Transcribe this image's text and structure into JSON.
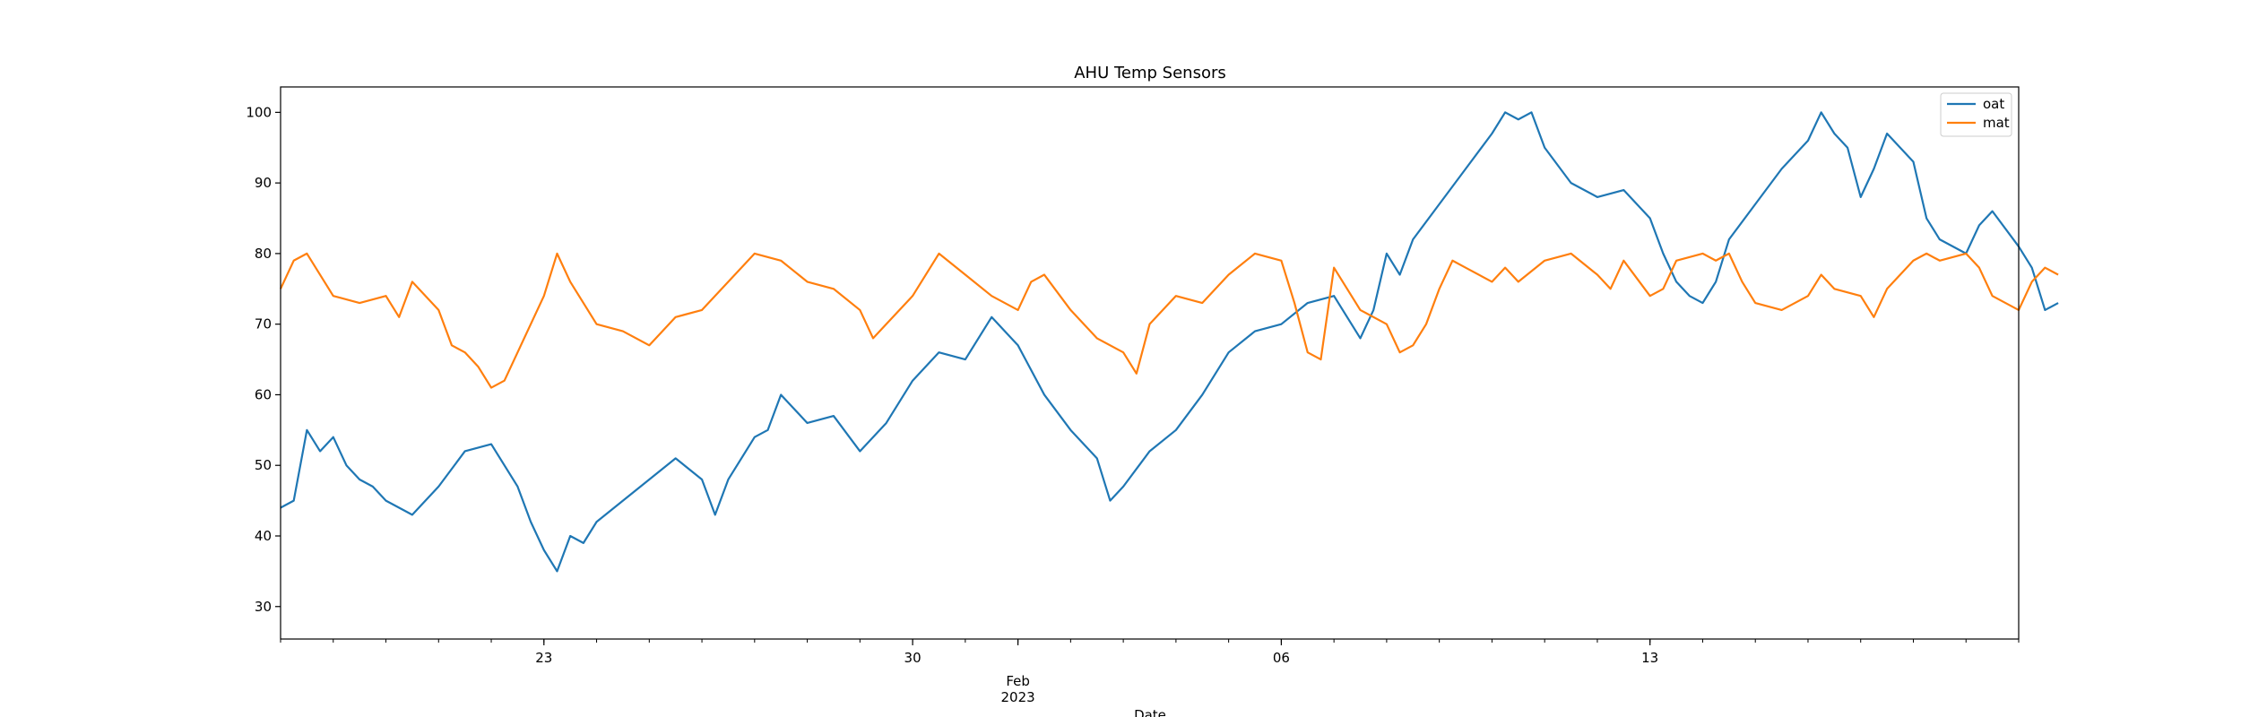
{
  "chart_data": {
    "type": "line",
    "title": "AHU Temp Sensors",
    "xlabel": "Date",
    "ylabel": "",
    "x_range": [
      "2023-01-18T00:00",
      "2023-02-20T00:00"
    ],
    "ylim": [
      25.4,
      103.6
    ],
    "yticks": [
      30,
      40,
      50,
      60,
      70,
      80,
      90,
      100
    ],
    "xticks_major": [
      {
        "date": "2023-01-23",
        "label": "23"
      },
      {
        "date": "2023-01-30",
        "label": "30"
      },
      {
        "date": "2023-02-01",
        "label": "Feb",
        "sublabel": "2023"
      },
      {
        "date": "2023-02-06",
        "label": "06"
      },
      {
        "date": "2023-02-13",
        "label": "13"
      }
    ],
    "grid": false,
    "legend_position": "top-right",
    "series": [
      {
        "name": "oat",
        "color": "#1f77b4",
        "points": [
          [
            "2023-01-18T00:00",
            44
          ],
          [
            "2023-01-18T06:00",
            45
          ],
          [
            "2023-01-18T12:00",
            55
          ],
          [
            "2023-01-18T18:00",
            52
          ],
          [
            "2023-01-19T00:00",
            54
          ],
          [
            "2023-01-19T06:00",
            50
          ],
          [
            "2023-01-19T12:00",
            48
          ],
          [
            "2023-01-19T18:00",
            47
          ],
          [
            "2023-01-20T00:00",
            45
          ],
          [
            "2023-01-20T12:00",
            43
          ],
          [
            "2023-01-21T00:00",
            47
          ],
          [
            "2023-01-21T12:00",
            52
          ],
          [
            "2023-01-22T00:00",
            53
          ],
          [
            "2023-01-22T12:00",
            47
          ],
          [
            "2023-01-22T18:00",
            42
          ],
          [
            "2023-01-23T00:00",
            38
          ],
          [
            "2023-01-23T06:00",
            35
          ],
          [
            "2023-01-23T12:00",
            40
          ],
          [
            "2023-01-23T18:00",
            39
          ],
          [
            "2023-01-24T00:00",
            42
          ],
          [
            "2023-01-24T12:00",
            45
          ],
          [
            "2023-01-25T00:00",
            48
          ],
          [
            "2023-01-25T12:00",
            51
          ],
          [
            "2023-01-26T00:00",
            48
          ],
          [
            "2023-01-26T06:00",
            43
          ],
          [
            "2023-01-26T12:00",
            48
          ],
          [
            "2023-01-27T00:00",
            54
          ],
          [
            "2023-01-27T06:00",
            55
          ],
          [
            "2023-01-27T12:00",
            60
          ],
          [
            "2023-01-28T00:00",
            56
          ],
          [
            "2023-01-28T12:00",
            57
          ],
          [
            "2023-01-29T00:00",
            52
          ],
          [
            "2023-01-29T12:00",
            56
          ],
          [
            "2023-01-30T00:00",
            62
          ],
          [
            "2023-01-30T12:00",
            66
          ],
          [
            "2023-01-31T00:00",
            65
          ],
          [
            "2023-01-31T12:00",
            71
          ],
          [
            "2023-02-01T00:00",
            67
          ],
          [
            "2023-02-01T12:00",
            60
          ],
          [
            "2023-02-02T00:00",
            55
          ],
          [
            "2023-02-02T12:00",
            51
          ],
          [
            "2023-02-02T18:00",
            45
          ],
          [
            "2023-02-03T00:00",
            47
          ],
          [
            "2023-02-03T12:00",
            52
          ],
          [
            "2023-02-04T00:00",
            55
          ],
          [
            "2023-02-04T12:00",
            60
          ],
          [
            "2023-02-05T00:00",
            66
          ],
          [
            "2023-02-05T12:00",
            69
          ],
          [
            "2023-02-06T00:00",
            70
          ],
          [
            "2023-02-06T12:00",
            73
          ],
          [
            "2023-02-07T00:00",
            74
          ],
          [
            "2023-02-07T12:00",
            68
          ],
          [
            "2023-02-07T18:00",
            72
          ],
          [
            "2023-02-08T00:00",
            80
          ],
          [
            "2023-02-08T06:00",
            77
          ],
          [
            "2023-02-08T12:00",
            82
          ],
          [
            "2023-02-09T00:00",
            87
          ],
          [
            "2023-02-09T12:00",
            92
          ],
          [
            "2023-02-10T00:00",
            97
          ],
          [
            "2023-02-10T06:00",
            100
          ],
          [
            "2023-02-10T12:00",
            99
          ],
          [
            "2023-02-10T18:00",
            100
          ],
          [
            "2023-02-11T00:00",
            95
          ],
          [
            "2023-02-11T12:00",
            90
          ],
          [
            "2023-02-12T00:00",
            88
          ],
          [
            "2023-02-12T12:00",
            89
          ],
          [
            "2023-02-13T00:00",
            85
          ],
          [
            "2023-02-13T06:00",
            80
          ],
          [
            "2023-02-13T12:00",
            76
          ],
          [
            "2023-02-13T18:00",
            74
          ],
          [
            "2023-02-14T00:00",
            73
          ],
          [
            "2023-02-14T06:00",
            76
          ],
          [
            "2023-02-14T12:00",
            82
          ],
          [
            "2023-02-15T00:00",
            87
          ],
          [
            "2023-02-15T12:00",
            92
          ],
          [
            "2023-02-16T00:00",
            96
          ],
          [
            "2023-02-16T06:00",
            100
          ],
          [
            "2023-02-16T12:00",
            97
          ],
          [
            "2023-02-16T18:00",
            95
          ],
          [
            "2023-02-17T00:00",
            88
          ],
          [
            "2023-02-17T06:00",
            92
          ],
          [
            "2023-02-17T12:00",
            97
          ],
          [
            "2023-02-18T00:00",
            93
          ],
          [
            "2023-02-18T06:00",
            85
          ],
          [
            "2023-02-18T12:00",
            82
          ],
          [
            "2023-02-19T00:00",
            80
          ],
          [
            "2023-02-19T06:00",
            84
          ],
          [
            "2023-02-19T12:00",
            86
          ],
          [
            "2023-02-20T00:00",
            81
          ],
          [
            "2023-02-20T06:00",
            78
          ],
          [
            "2023-02-20T12:00",
            72
          ],
          [
            "2023-02-20T18:00",
            73
          ]
        ]
      },
      {
        "name": "mat",
        "color": "#ff7f0e",
        "points": [
          [
            "2023-01-18T00:00",
            75
          ],
          [
            "2023-01-18T06:00",
            79
          ],
          [
            "2023-01-18T12:00",
            80
          ],
          [
            "2023-01-18T18:00",
            77
          ],
          [
            "2023-01-19T00:00",
            74
          ],
          [
            "2023-01-19T12:00",
            73
          ],
          [
            "2023-01-20T00:00",
            74
          ],
          [
            "2023-01-20T06:00",
            71
          ],
          [
            "2023-01-20T12:00",
            76
          ],
          [
            "2023-01-21T00:00",
            72
          ],
          [
            "2023-01-21T06:00",
            67
          ],
          [
            "2023-01-21T12:00",
            66
          ],
          [
            "2023-01-21T18:00",
            64
          ],
          [
            "2023-01-22T00:00",
            61
          ],
          [
            "2023-01-22T06:00",
            62
          ],
          [
            "2023-01-22T12:00",
            66
          ],
          [
            "2023-01-23T00:00",
            74
          ],
          [
            "2023-01-23T06:00",
            80
          ],
          [
            "2023-01-23T12:00",
            76
          ],
          [
            "2023-01-24T00:00",
            70
          ],
          [
            "2023-01-24T12:00",
            69
          ],
          [
            "2023-01-25T00:00",
            67
          ],
          [
            "2023-01-25T12:00",
            71
          ],
          [
            "2023-01-26T00:00",
            72
          ],
          [
            "2023-01-26T12:00",
            76
          ],
          [
            "2023-01-27T00:00",
            80
          ],
          [
            "2023-01-27T12:00",
            79
          ],
          [
            "2023-01-28T00:00",
            76
          ],
          [
            "2023-01-28T12:00",
            75
          ],
          [
            "2023-01-29T00:00",
            72
          ],
          [
            "2023-01-29T06:00",
            68
          ],
          [
            "2023-01-29T12:00",
            70
          ],
          [
            "2023-01-30T00:00",
            74
          ],
          [
            "2023-01-30T06:00",
            77
          ],
          [
            "2023-01-30T12:00",
            80
          ],
          [
            "2023-01-31T00:00",
            77
          ],
          [
            "2023-01-31T12:00",
            74
          ],
          [
            "2023-02-01T00:00",
            72
          ],
          [
            "2023-02-01T06:00",
            76
          ],
          [
            "2023-02-01T12:00",
            77
          ],
          [
            "2023-02-02T00:00",
            72
          ],
          [
            "2023-02-02T06:00",
            70
          ],
          [
            "2023-02-02T12:00",
            68
          ],
          [
            "2023-02-03T00:00",
            66
          ],
          [
            "2023-02-03T06:00",
            63
          ],
          [
            "2023-02-03T12:00",
            70
          ],
          [
            "2023-02-04T00:00",
            74
          ],
          [
            "2023-02-04T12:00",
            73
          ],
          [
            "2023-02-05T00:00",
            77
          ],
          [
            "2023-02-05T12:00",
            80
          ],
          [
            "2023-02-06T00:00",
            79
          ],
          [
            "2023-02-06T06:00",
            73
          ],
          [
            "2023-02-06T12:00",
            66
          ],
          [
            "2023-02-06T18:00",
            65
          ],
          [
            "2023-02-07T00:00",
            78
          ],
          [
            "2023-02-07T12:00",
            72
          ],
          [
            "2023-02-08T00:00",
            70
          ],
          [
            "2023-02-08T06:00",
            66
          ],
          [
            "2023-02-08T12:00",
            67
          ],
          [
            "2023-02-08T18:00",
            70
          ],
          [
            "2023-02-09T00:00",
            75
          ],
          [
            "2023-02-09T06:00",
            79
          ],
          [
            "2023-02-09T12:00",
            78
          ],
          [
            "2023-02-10T00:00",
            76
          ],
          [
            "2023-02-10T06:00",
            78
          ],
          [
            "2023-02-10T12:00",
            76
          ],
          [
            "2023-02-11T00:00",
            79
          ],
          [
            "2023-02-11T12:00",
            80
          ],
          [
            "2023-02-12T00:00",
            77
          ],
          [
            "2023-02-12T06:00",
            75
          ],
          [
            "2023-02-12T12:00",
            79
          ],
          [
            "2023-02-13T00:00",
            74
          ],
          [
            "2023-02-13T06:00",
            75
          ],
          [
            "2023-02-13T12:00",
            79
          ],
          [
            "2023-02-14T00:00",
            80
          ],
          [
            "2023-02-14T06:00",
            79
          ],
          [
            "2023-02-14T12:00",
            80
          ],
          [
            "2023-02-14T18:00",
            76
          ],
          [
            "2023-02-15T00:00",
            73
          ],
          [
            "2023-02-15T12:00",
            72
          ],
          [
            "2023-02-16T00:00",
            74
          ],
          [
            "2023-02-16T06:00",
            77
          ],
          [
            "2023-02-16T12:00",
            75
          ],
          [
            "2023-02-17T00:00",
            74
          ],
          [
            "2023-02-17T06:00",
            71
          ],
          [
            "2023-02-17T12:00",
            75
          ],
          [
            "2023-02-18T00:00",
            79
          ],
          [
            "2023-02-18T06:00",
            80
          ],
          [
            "2023-02-18T12:00",
            79
          ],
          [
            "2023-02-19T00:00",
            80
          ],
          [
            "2023-02-19T06:00",
            78
          ],
          [
            "2023-02-19T12:00",
            74
          ],
          [
            "2023-02-20T00:00",
            72
          ],
          [
            "2023-02-20T06:00",
            76
          ],
          [
            "2023-02-20T12:00",
            78
          ],
          [
            "2023-02-20T18:00",
            77
          ]
        ]
      }
    ]
  }
}
